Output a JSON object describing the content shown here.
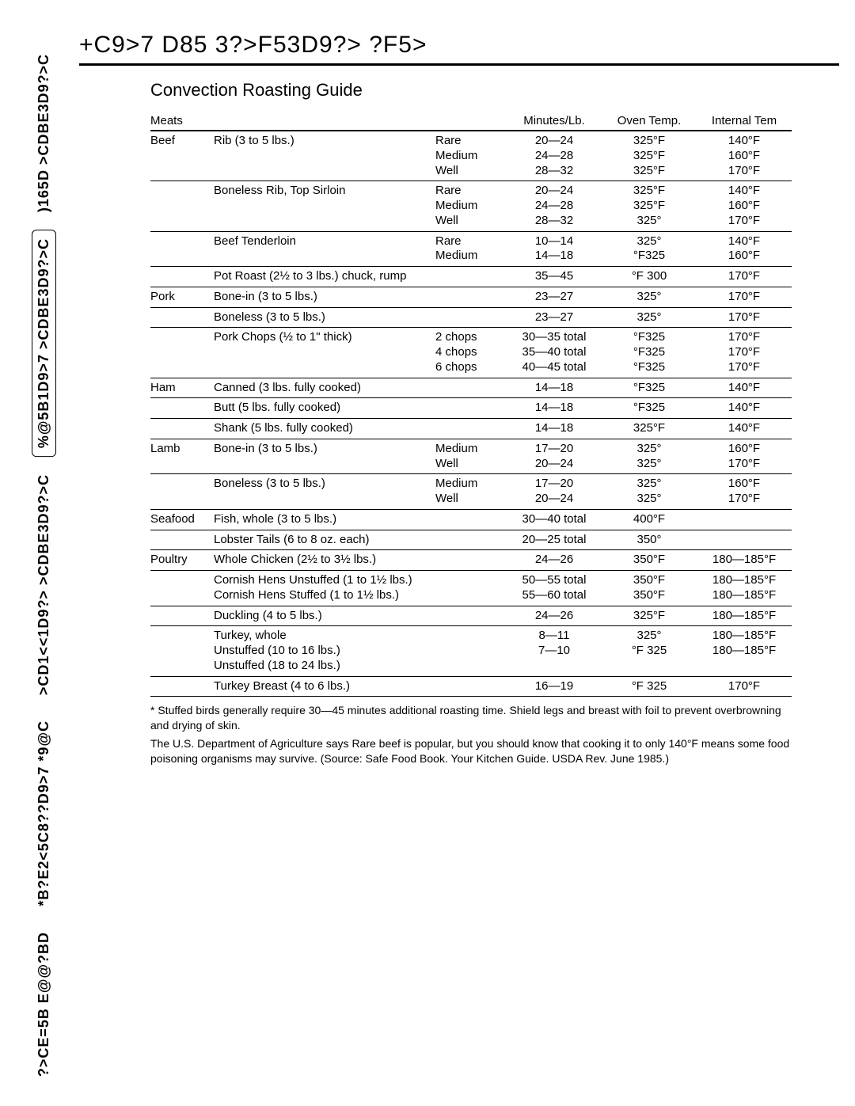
{
  "sidebar": {
    "items": [
      "?>CE=5B E@@?BD",
      "*B?E2<5C8??D9>7 *9@C",
      ">CD1<<1D9?> >CDBE3D9?>C",
      "%@5B1D9>7 >CDBE3D9?>C",
      ")165D >CDBE3D9?>C",
      "+C9>7 D85 3?>F53D9?> ?F5>"
    ]
  },
  "page_title_text": "+C9>7 D85 3?>F53D9?> ?F5>",
  "section_title_text": "Convection Roasting Guide",
  "table": {
    "headers": {
      "meat": "Meats",
      "minutes": "Minutes/Lb.",
      "oven": "Oven Temp.",
      "internal": "Internal Tem"
    },
    "groups": [
      {
        "meat": "Beef",
        "rows": [
          {
            "item": "Rib (3 to 5 lbs.)",
            "done": [
              "Rare",
              "Medium",
              "Well"
            ],
            "min": [
              "20—24",
              "24—28",
              "28—32"
            ],
            "temp": [
              "325°F",
              "325°F",
              "325°F"
            ],
            "int": [
              "140°F",
              "160°F",
              "170°F"
            ]
          },
          {
            "item": "Boneless Rib, Top Sirloin",
            "done": [
              "Rare",
              "Medium",
              "Well"
            ],
            "min": [
              "20—24",
              "24—28",
              "28—32"
            ],
            "temp": [
              "325°F",
              "325°F",
              "325°"
            ],
            "int": [
              "140°F",
              "160°F",
              "170°F"
            ]
          },
          {
            "item": "Beef Tenderloin",
            "done": [
              "Rare",
              "Medium"
            ],
            "min": [
              "10—14",
              "14—18"
            ],
            "temp": [
              "325°",
              "°F325"
            ],
            "int": [
              "140°F",
              "160°F"
            ]
          },
          {
            "item": "Pot Roast (2½ to 3 lbs.) chuck, rump",
            "done": [],
            "min": [
              "35—45"
            ],
            "temp": [
              "°F 300"
            ],
            "int": [
              "170°F"
            ]
          }
        ]
      },
      {
        "meat": "Pork",
        "rows": [
          {
            "item": "Bone-in (3 to 5 lbs.)",
            "done": [],
            "min": [
              "23—27"
            ],
            "temp": [
              "325°"
            ],
            "int": [
              "170°F"
            ]
          },
          {
            "item": "Boneless (3 to 5 lbs.)",
            "done": [],
            "min": [
              "23—27"
            ],
            "temp": [
              "325°"
            ],
            "int": [
              "170°F"
            ]
          },
          {
            "item": "Pork Chops (½ to 1\" thick)",
            "done": [
              "2 chops",
              "4 chops",
              "6 chops"
            ],
            "min": [
              "30—35 total",
              "35—40 total",
              "40—45 total"
            ],
            "temp": [
              "°F325",
              "°F325",
              "°F325"
            ],
            "int": [
              "170°F",
              "170°F",
              "170°F"
            ]
          }
        ]
      },
      {
        "meat": "Ham",
        "rows": [
          {
            "item": "Canned (3 lbs. fully cooked)",
            "done": [],
            "min": [
              "14—18"
            ],
            "temp": [
              "°F325"
            ],
            "int": [
              "140°F"
            ]
          },
          {
            "item": "Butt (5 lbs. fully cooked)",
            "done": [],
            "min": [
              "14—18"
            ],
            "temp": [
              "°F325"
            ],
            "int": [
              "140°F"
            ]
          },
          {
            "item": "Shank (5 lbs. fully cooked)",
            "done": [],
            "min": [
              "14—18"
            ],
            "temp": [
              "325°F"
            ],
            "int": [
              "140°F"
            ]
          }
        ]
      },
      {
        "meat": "Lamb",
        "rows": [
          {
            "item": "Bone-in (3 to 5 lbs.)",
            "done": [
              "Medium",
              "Well"
            ],
            "min": [
              "17—20",
              "20—24"
            ],
            "temp": [
              "325°",
              "325°"
            ],
            "int": [
              "160°F",
              "170°F"
            ]
          },
          {
            "item": "Boneless (3 to 5 lbs.)",
            "done": [
              "Medium",
              "Well"
            ],
            "min": [
              "17—20",
              "20—24"
            ],
            "temp": [
              "325°",
              "325°"
            ],
            "int": [
              "160°F",
              "170°F"
            ]
          }
        ]
      },
      {
        "meat": "Seafood",
        "rows": [
          {
            "item": "Fish, whole (3 to 5 lbs.)",
            "done": [],
            "min": [
              "30—40 total"
            ],
            "temp": [
              "400°F"
            ],
            "int": [
              ""
            ]
          },
          {
            "item": "Lobster Tails (6 to 8 oz. each)",
            "done": [],
            "min": [
              "20—25 total"
            ],
            "temp": [
              "350°"
            ],
            "int": [
              ""
            ]
          }
        ]
      },
      {
        "meat": "Poultry",
        "rows": [
          {
            "item": "Whole Chicken (2½ to 3½ lbs.)",
            "done": [],
            "min": [
              "24—26"
            ],
            "temp": [
              "350°F"
            ],
            "int": [
              "180—185°F"
            ]
          },
          {
            "item": "Cornish Hens Unstuffed (1 to 1½ lbs.)\nCornish Hens Stuffed (1 to 1½ lbs.)",
            "done": [],
            "min": [
              "50—55 total",
              "55—60 total"
            ],
            "temp": [
              "350°F",
              "350°F"
            ],
            "int": [
              "180—185°F",
              "180—185°F"
            ]
          },
          {
            "item": "Duckling (4 to 5 lbs.)",
            "done": [],
            "min": [
              "24—26"
            ],
            "temp": [
              "325°F"
            ],
            "int": [
              "180—185°F"
            ]
          },
          {
            "item": "Turkey, whole\nUnstuffed (10 to 16 lbs.)\nUnstuffed (18 to 24 lbs.)",
            "done": [],
            "min": [
              "",
              "8—11",
              "7—10"
            ],
            "temp": [
              "",
              "325°",
              "°F  325"
            ],
            "int": [
              "",
              "180—185°F",
              "180—185°F"
            ]
          },
          {
            "item": "Turkey Breast (4 to 6 lbs.)",
            "done": [],
            "min": [
              "16—19"
            ],
            "temp": [
              "°F  325"
            ],
            "int": [
              "170°F"
            ]
          }
        ]
      }
    ]
  },
  "notes": {
    "n1": "* Stuffed birds generally require 30—45 minutes additional roasting time. Shield legs and breast with foil to prevent overbrowning and drying of skin.",
    "n2": "The U.S. Department of Agriculture says  Rare beef is popular, but you should know that cooking it to only 140°F means some food poisoning organisms may survive.  (Source: Safe Food Book. Your Kitchen Guide. USDA Rev. June 1985.)"
  },
  "style": {
    "font_family": "Arial, Helvetica, sans-serif",
    "text_color": "#000000",
    "bg_color": "#ffffff",
    "rule_color": "#000000",
    "title_fontsize": 30,
    "section_fontsize": 22,
    "body_fontsize": 15,
    "note_fontsize": 14
  }
}
